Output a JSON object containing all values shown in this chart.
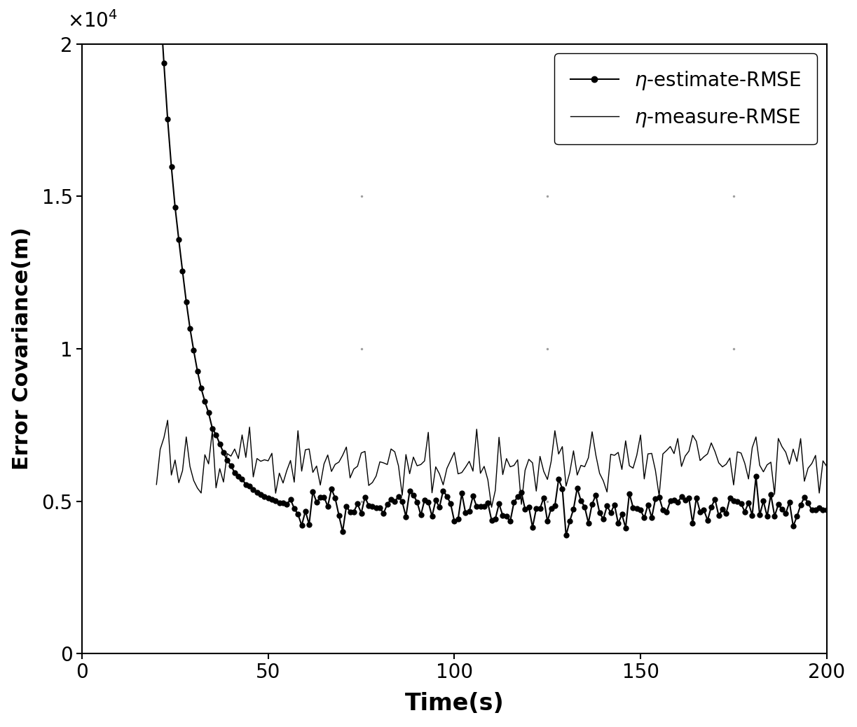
{
  "title": "",
  "xlabel": "Time(s)",
  "ylabel": "Error Covariance(m)",
  "xlim": [
    0,
    200
  ],
  "ylim": [
    0,
    20000
  ],
  "yticks": [
    0,
    5000,
    10000,
    15000,
    20000
  ],
  "ytick_labels": [
    "0",
    "0.5",
    "1",
    "1.5",
    "2"
  ],
  "xticks": [
    0,
    50,
    100,
    150,
    200
  ],
  "line_color": "#000000",
  "background_color": "#ffffff",
  "estimate_seed": 1001,
  "measure_seed": 2002,
  "estimate_flat_mean": 4800,
  "estimate_flat_std": 350,
  "measure_flat_mean": 6200,
  "measure_flat_std": 500
}
